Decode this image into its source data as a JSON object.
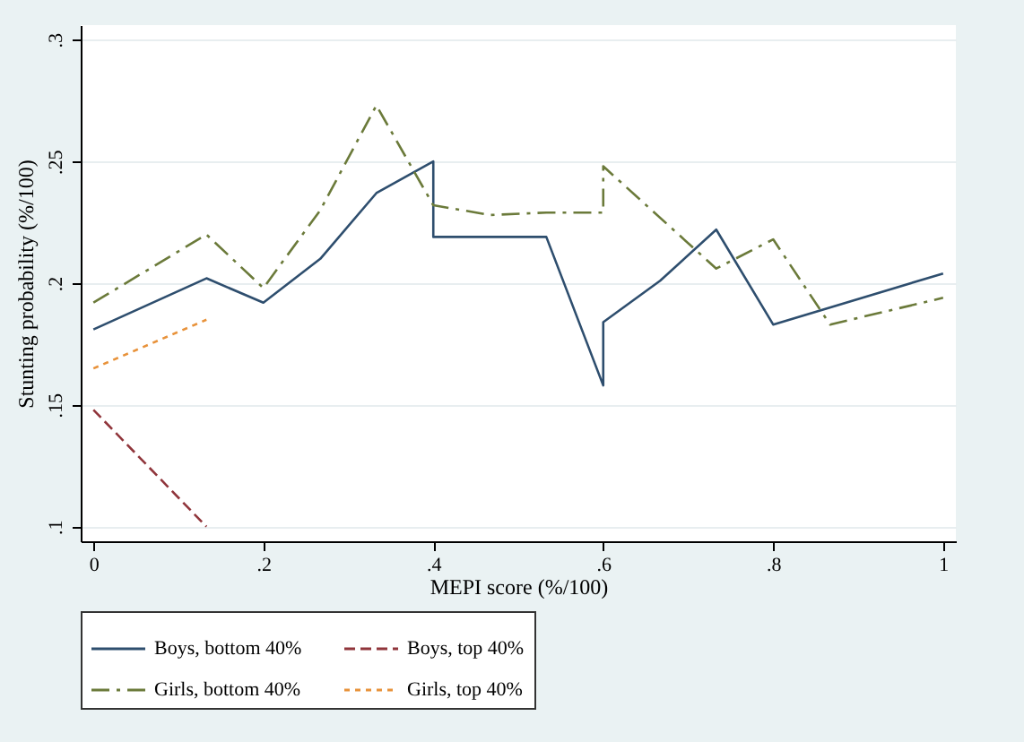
{
  "chart_data": {
    "type": "line",
    "xlabel": "MEPI score (%/100)",
    "ylabel": "Stunting probability (%/100)",
    "xlim": [
      -0.015,
      1.015
    ],
    "xticks": [
      0,
      {
        "value": 0.2,
        "label": ".2"
      },
      {
        "value": 0.4,
        "label": ".4"
      },
      {
        "value": 0.6,
        "label": ".6"
      },
      {
        "value": 0.8,
        "label": ".8"
      },
      1
    ],
    "ylim": [
      0.094,
      0.306
    ],
    "yticks": [
      {
        "value": 0.1,
        "label": ".1"
      },
      {
        "value": 0.15,
        "label": ".15"
      },
      {
        "value": 0.2,
        "label": ".2"
      },
      {
        "value": 0.25,
        "label": ".25"
      },
      {
        "value": 0.3,
        "label": ".3"
      }
    ],
    "grid": "y",
    "legend": "bottom",
    "marker": "none",
    "series": [
      {
        "name": "Boys, bottom 40%",
        "color": "#2e4e6e",
        "line_style": "solid",
        "x": [
          0,
          0.133,
          0.2,
          0.267,
          0.333,
          0.4,
          0.4,
          0.533,
          0.6,
          0.6,
          0.667,
          0.733,
          0.8,
          1
        ],
        "values": [
          0.181,
          0.202,
          0.192,
          0.21,
          0.237,
          0.25,
          0.219,
          0.219,
          0.158,
          0.184,
          0.201,
          0.222,
          0.183,
          0.204
        ]
      },
      {
        "name": "Boys, top 40%",
        "color": "#90353b",
        "line_style": "dashed",
        "x": [
          0,
          0.133
        ],
        "values": [
          0.148,
          0.1
        ]
      },
      {
        "name": "Girls, bottom 40%",
        "color": "#6b7a3a",
        "line_style": "dashdot",
        "x": [
          0,
          0.133,
          0.2,
          0.267,
          0.333,
          0.4,
          0.467,
          0.533,
          0.6,
          0.6,
          0.733,
          0.8,
          0.867,
          1
        ],
        "values": [
          0.192,
          0.22,
          0.198,
          0.23,
          0.273,
          0.232,
          0.228,
          0.229,
          0.229,
          0.248,
          0.206,
          0.218,
          0.183,
          0.194
        ]
      },
      {
        "name": "Girls, top 40%",
        "color": "#e8923a",
        "line_style": "dotted",
        "x": [
          0,
          0.133
        ],
        "values": [
          0.165,
          0.185
        ]
      }
    ]
  }
}
